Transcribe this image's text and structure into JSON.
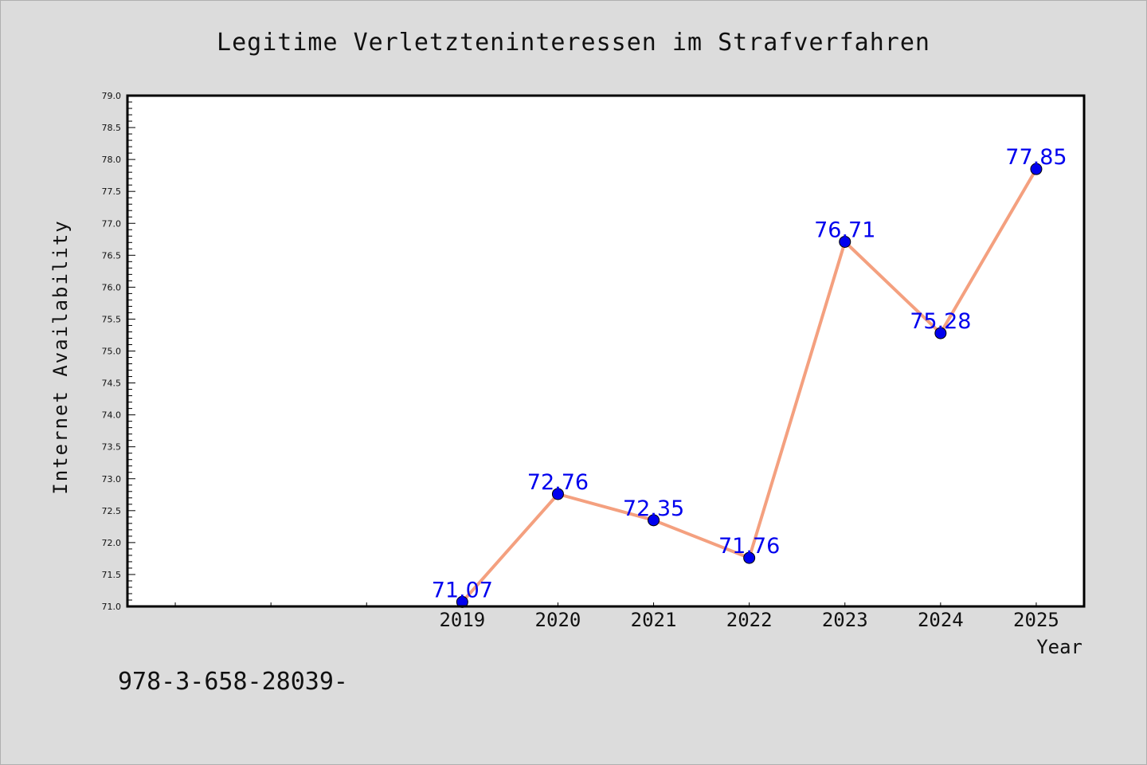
{
  "chart_data": {
    "type": "line",
    "title": "Legitime Verletzteninteressen im Strafverfahren",
    "xlabel": "Year",
    "ylabel": "Internet Availability",
    "footer": "978-3-658-28039-",
    "x": [
      2019,
      2020,
      2021,
      2022,
      2023,
      2024,
      2025
    ],
    "x_tick_labels": [
      "2019",
      "2020",
      "2021",
      "2022",
      "2023",
      "2024",
      "2025"
    ],
    "xlim": [
      2015.5,
      2025.5
    ],
    "ylim": [
      71.0,
      79.0
    ],
    "y_major_step": 0.5,
    "y_minor_step": 0.1,
    "grid": false,
    "series": [
      {
        "values": [
          71.07,
          72.76,
          72.35,
          71.76,
          76.71,
          75.28,
          77.85
        ],
        "data_labels": [
          "71.07",
          "72.76",
          "72.35",
          "71.76",
          "76.71",
          "75.28",
          "77.85"
        ],
        "line_color": "#f4a07f",
        "marker_color": "#0000ee"
      }
    ],
    "colors": {
      "background": "#dcdcdc",
      "plot_background": "#ffffff",
      "data_label": "#0000ee",
      "text": "#111111"
    }
  }
}
